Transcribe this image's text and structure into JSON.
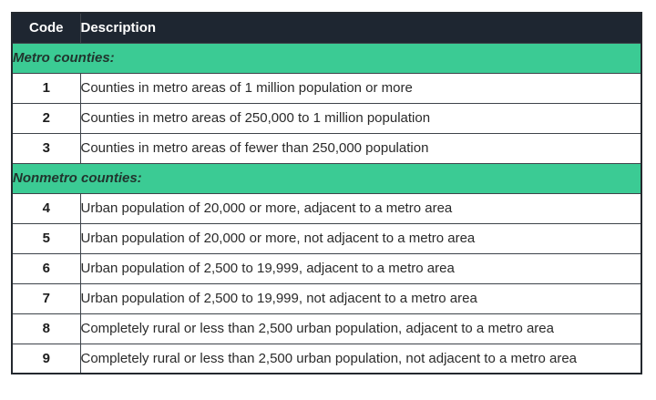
{
  "table": {
    "columns": [
      {
        "label": "Code"
      },
      {
        "label": "Description"
      }
    ],
    "sections": [
      {
        "header": "Metro counties:",
        "rows": [
          {
            "code": "1",
            "description": "Counties in metro areas of 1 million population or more"
          },
          {
            "code": "2",
            "description": "Counties in metro areas of 250,000 to 1 million population"
          },
          {
            "code": "3",
            "description": "Counties in metro areas of fewer than 250,000 population"
          }
        ]
      },
      {
        "header": "Nonmetro counties:",
        "rows": [
          {
            "code": "4",
            "description": "Urban population of 20,000 or more, adjacent to a metro area"
          },
          {
            "code": "5",
            "description": "Urban population of 20,000 or more, not adjacent to a metro area"
          },
          {
            "code": "6",
            "description": "Urban population of 2,500 to 19,999, adjacent to a metro area"
          },
          {
            "code": "7",
            "description": "Urban population of 2,500 to 19,999, not adjacent to a metro area"
          },
          {
            "code": "8",
            "description": "Completely rural or less than 2,500 urban population, adjacent to a metro area"
          },
          {
            "code": "9",
            "description": "Completely rural or less than 2,500 urban population, not adjacent to a metro area"
          }
        ]
      }
    ],
    "colors": {
      "header_bg": "#1e2631",
      "header_text": "#ffffff",
      "section_bg": "#3bcb94",
      "section_text": "#21352e",
      "row_text": "#2a2a2a",
      "border_inner": "#3d434a",
      "border_outer": "#23282e"
    }
  },
  "chart_data": {
    "type": "table",
    "title": "",
    "columns": [
      "Code",
      "Description"
    ],
    "rows": [
      {
        "section": "Metro counties:"
      },
      [
        "1",
        "Counties in metro areas of 1 million population or more"
      ],
      [
        "2",
        "Counties in metro areas of 250,000 to 1 million population"
      ],
      [
        "3",
        "Counties in metro areas of fewer than 250,000 population"
      ],
      {
        "section": "Nonmetro counties:"
      },
      [
        "4",
        "Urban population of 20,000 or more, adjacent to a metro area"
      ],
      [
        "5",
        "Urban population of 20,000 or more, not adjacent to a metro area"
      ],
      [
        "6",
        "Urban population of 2,500 to 19,999, adjacent to a metro area"
      ],
      [
        "7",
        "Urban population of 2,500 to 19,999, not adjacent to a metro area"
      ],
      [
        "8",
        "Completely rural or less than 2,500 urban population, adjacent to a metro area"
      ],
      [
        "9",
        "Completely rural or less than 2,500 urban population, not adjacent to a metro area"
      ]
    ],
    "layout": {
      "section_rows_merged": true,
      "grid": true
    }
  }
}
